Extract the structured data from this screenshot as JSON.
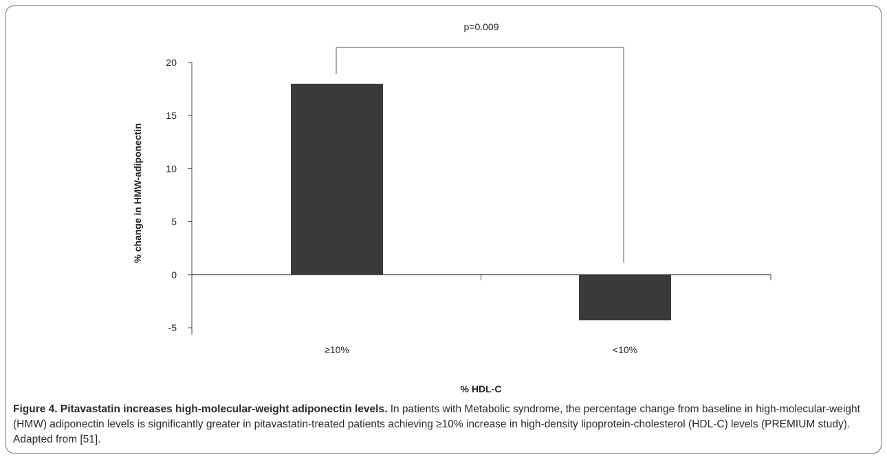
{
  "chart_data": {
    "type": "bar",
    "categories": [
      "≥10%",
      "<10%"
    ],
    "values": [
      18.0,
      -4.3
    ],
    "xlabel": "% HDL-C",
    "ylabel": "% change in HMW-adiponectin",
    "ylim": [
      -5,
      20
    ],
    "yticks": [
      -5,
      0,
      5,
      10,
      15,
      20
    ],
    "bar_color": "#3a3a3a",
    "grid": false,
    "legend": "none",
    "annotations": [
      {
        "text": "p=0.009",
        "type": "significance-bracket",
        "between": [
          "≥10%",
          "<10%"
        ]
      }
    ]
  },
  "caption": {
    "title": "Figure 4. Pitavastatin increases high-molecular-weight adiponectin levels.",
    "body": "In patients with Metabolic syndrome, the percentage change from baseline in high-molecular-weight (HMW) adiponectin levels is significantly greater in pitavastatin-treated patients achieving ≥10% increase in high-density lipoprotein-cholesterol (HDL-C) levels (PREMIUM study). Adapted from [51]."
  }
}
